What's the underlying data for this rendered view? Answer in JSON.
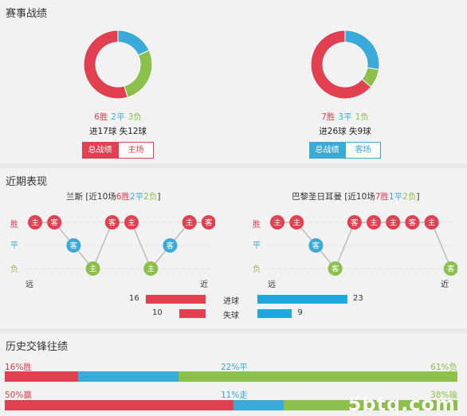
{
  "colors": {
    "win": "#e0404f",
    "draw": "#3aaad8",
    "loss": "#8cc04c",
    "line": "#bbbbbb",
    "dot_line": "#cccccc"
  },
  "record": {
    "title": "赛事战绩",
    "left": {
      "win": "6胜",
      "draw": "2平",
      "loss": "3负",
      "goals_for": "进17球",
      "goals_against": "失12球",
      "tab_total": "总战绩",
      "tab_venue": "主场",
      "donut": {
        "win": 6,
        "draw": 2,
        "loss": 3
      }
    },
    "right": {
      "win": "7胜",
      "draw": "3平",
      "loss": "1负",
      "goals_for": "进26球",
      "goals_against": "失9球",
      "tab_total": "总战绩",
      "tab_venue": "客场",
      "donut": {
        "win": 7,
        "draw": 3,
        "loss": 1
      }
    }
  },
  "recent": {
    "title": "近期表现",
    "axis_win": "胜",
    "axis_draw": "平",
    "axis_loss": "负",
    "far": "远",
    "near": "近",
    "home_marker": "主",
    "away_marker": "客",
    "left": {
      "team": "兰斯",
      "summary_pre": " [近10场",
      "w": "6胜",
      "d": "2平",
      "l": "2负",
      "summary_post": "]",
      "results": [
        "W",
        "W",
        "D",
        "L",
        "W",
        "W",
        "L",
        "D",
        "W",
        "W"
      ],
      "venues": [
        "主",
        "客",
        "客",
        "主",
        "客",
        "主",
        "主",
        "客",
        "主",
        "客"
      ],
      "scored": "16",
      "conceded": "10",
      "scored_value": 16,
      "conceded_value": 10
    },
    "right": {
      "team": "巴黎圣日耳曼",
      "summary_pre": " [近10场",
      "w": "7胜",
      "d": "1平",
      "l": "2负",
      "summary_post": "]",
      "results": [
        "W",
        "W",
        "D",
        "L",
        "W",
        "W",
        "W",
        "W",
        "W",
        "L"
      ],
      "venues": [
        "主",
        "主",
        "客",
        "客",
        "客",
        "主",
        "主",
        "客",
        "主",
        "客"
      ],
      "scored": "23",
      "conceded": "9",
      "scored_value": 23,
      "conceded_value": 9
    },
    "scored_label": "进球",
    "conceded_label": "失球"
  },
  "history": {
    "title": "历史交锋往绩",
    "row1": {
      "win": "16%胜",
      "draw": "22%平",
      "loss": "61%负",
      "win_pct": 16,
      "draw_pct": 22,
      "loss_pct": 61
    },
    "row2": {
      "win": "50%赢",
      "draw": "11%走",
      "loss": "38%输",
      "win_pct": 50,
      "draw_pct": 11,
      "loss_pct": 38
    },
    "watermark": "5btq.com"
  }
}
